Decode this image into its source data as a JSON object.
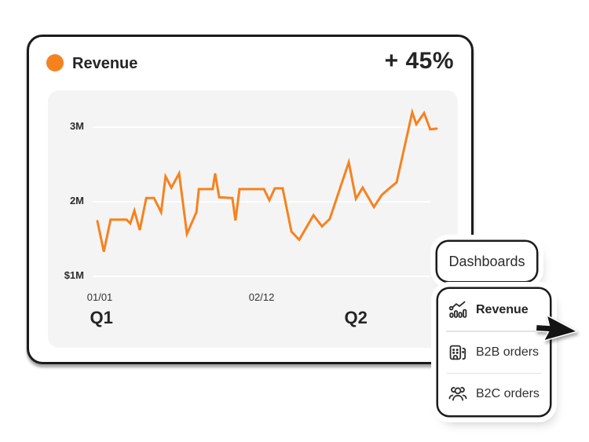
{
  "card": {
    "title": "Revenue",
    "change_label": "+ 45%"
  },
  "chart_data": {
    "type": "line",
    "title": "Revenue",
    "line_color": "#F6821F",
    "background": "#F4F4F4",
    "gridline_color": "#FFFFFF",
    "grid": true,
    "legend": "none",
    "y_unit": "millions",
    "ylim": [
      1,
      3.4
    ],
    "y_ticks": [
      {
        "label": "3M",
        "value": 3
      },
      {
        "label": "2M",
        "value": 2
      },
      {
        "label": "$1M",
        "value": 1
      }
    ],
    "x_ticks": [
      {
        "label": "01/01",
        "x": 0.7
      },
      {
        "label": "02/12",
        "x": 48.4
      }
    ],
    "quarter_labels": [
      {
        "label": "Q1",
        "x": 1.2
      },
      {
        "label": "Q2",
        "x": 76.2
      }
    ],
    "points": [
      {
        "x": 0.0,
        "y": 1.74
      },
      {
        "x": 1.9,
        "y": 1.33
      },
      {
        "x": 3.9,
        "y": 1.76
      },
      {
        "x": 8.6,
        "y": 1.76
      },
      {
        "x": 9.7,
        "y": 1.71
      },
      {
        "x": 10.9,
        "y": 1.88
      },
      {
        "x": 12.5,
        "y": 1.62
      },
      {
        "x": 14.4,
        "y": 2.05
      },
      {
        "x": 16.7,
        "y": 2.05
      },
      {
        "x": 18.8,
        "y": 1.86
      },
      {
        "x": 20.1,
        "y": 2.34
      },
      {
        "x": 21.8,
        "y": 2.19
      },
      {
        "x": 24.1,
        "y": 2.38
      },
      {
        "x": 26.4,
        "y": 1.57
      },
      {
        "x": 29.2,
        "y": 1.86
      },
      {
        "x": 29.9,
        "y": 2.17
      },
      {
        "x": 34.0,
        "y": 2.17
      },
      {
        "x": 34.7,
        "y": 2.38
      },
      {
        "x": 35.9,
        "y": 2.06
      },
      {
        "x": 39.8,
        "y": 2.05
      },
      {
        "x": 40.7,
        "y": 1.75
      },
      {
        "x": 41.9,
        "y": 2.17
      },
      {
        "x": 49.1,
        "y": 2.17
      },
      {
        "x": 50.7,
        "y": 2.02
      },
      {
        "x": 52.3,
        "y": 2.18
      },
      {
        "x": 54.6,
        "y": 2.18
      },
      {
        "x": 57.2,
        "y": 1.6
      },
      {
        "x": 59.5,
        "y": 1.49
      },
      {
        "x": 63.7,
        "y": 1.82
      },
      {
        "x": 66.2,
        "y": 1.67
      },
      {
        "x": 68.5,
        "y": 1.77
      },
      {
        "x": 74.1,
        "y": 2.53
      },
      {
        "x": 76.2,
        "y": 2.04
      },
      {
        "x": 78.2,
        "y": 2.19
      },
      {
        "x": 81.5,
        "y": 1.93
      },
      {
        "x": 83.8,
        "y": 2.09
      },
      {
        "x": 86.3,
        "y": 2.19
      },
      {
        "x": 88.2,
        "y": 2.26
      },
      {
        "x": 92.8,
        "y": 3.2
      },
      {
        "x": 94.0,
        "y": 3.04
      },
      {
        "x": 96.3,
        "y": 3.19
      },
      {
        "x": 98.1,
        "y": 2.97
      },
      {
        "x": 100.0,
        "y": 2.98
      }
    ]
  },
  "dropdown": {
    "trigger_label": "Dashboards",
    "items": [
      {
        "label": "Revenue",
        "icon": "bar-chart-trend-icon",
        "selected": true
      },
      {
        "label": "B2B orders",
        "icon": "building-icon",
        "selected": false
      },
      {
        "label": "B2C orders",
        "icon": "people-icon",
        "selected": false
      }
    ]
  },
  "colors": {
    "accent_orange": "#F6821F",
    "outline_dark": "#1B1B1B",
    "text_dark": "#2B2B2B",
    "chart_background": "#F4F4F4",
    "divider": "#E3E3E3"
  }
}
